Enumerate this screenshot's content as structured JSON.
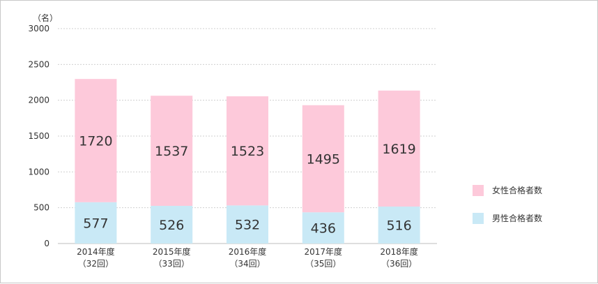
{
  "chart_data": {
    "type": "bar",
    "stacked": true,
    "y_unit": "（名）",
    "ylim": [
      0,
      3000
    ],
    "yticks": [
      0,
      500,
      1000,
      1500,
      2000,
      2500,
      3000
    ],
    "grid": true,
    "legend_position": "right",
    "categories": [
      {
        "label": "2014年度",
        "sub": "（32回）"
      },
      {
        "label": "2015年度",
        "sub": "（33回）"
      },
      {
        "label": "2016年度",
        "sub": "（34回）"
      },
      {
        "label": "2017年度",
        "sub": "（35回）"
      },
      {
        "label": "2018年度",
        "sub": "（36回）"
      }
    ],
    "series": [
      {
        "name": "男性合格者数",
        "color": "#c9e9f6",
        "values": [
          577,
          526,
          532,
          436,
          516
        ]
      },
      {
        "name": "女性合格者数",
        "color": "#fdc9da",
        "values": [
          1720,
          1537,
          1523,
          1495,
          1619
        ]
      }
    ],
    "legend_order": [
      1,
      0
    ]
  }
}
